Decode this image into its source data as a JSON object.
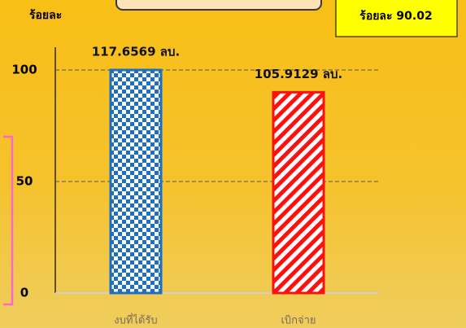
{
  "chart_data": {
    "type": "bar",
    "y_label": "ร้อยละ",
    "callout": "ร้อยละ 90.02",
    "categories": [
      "งบที่ได้รับ",
      "เบิกจ่าย"
    ],
    "values": [
      100,
      90.02
    ],
    "annotations": [
      "117.6569 ลบ.",
      "105.9129 ลบ."
    ],
    "colors": [
      "#1e6fc0",
      "#ff1010"
    ],
    "ylim": [
      0,
      100
    ],
    "yticks": [
      0,
      50,
      100
    ],
    "grid": true
  }
}
